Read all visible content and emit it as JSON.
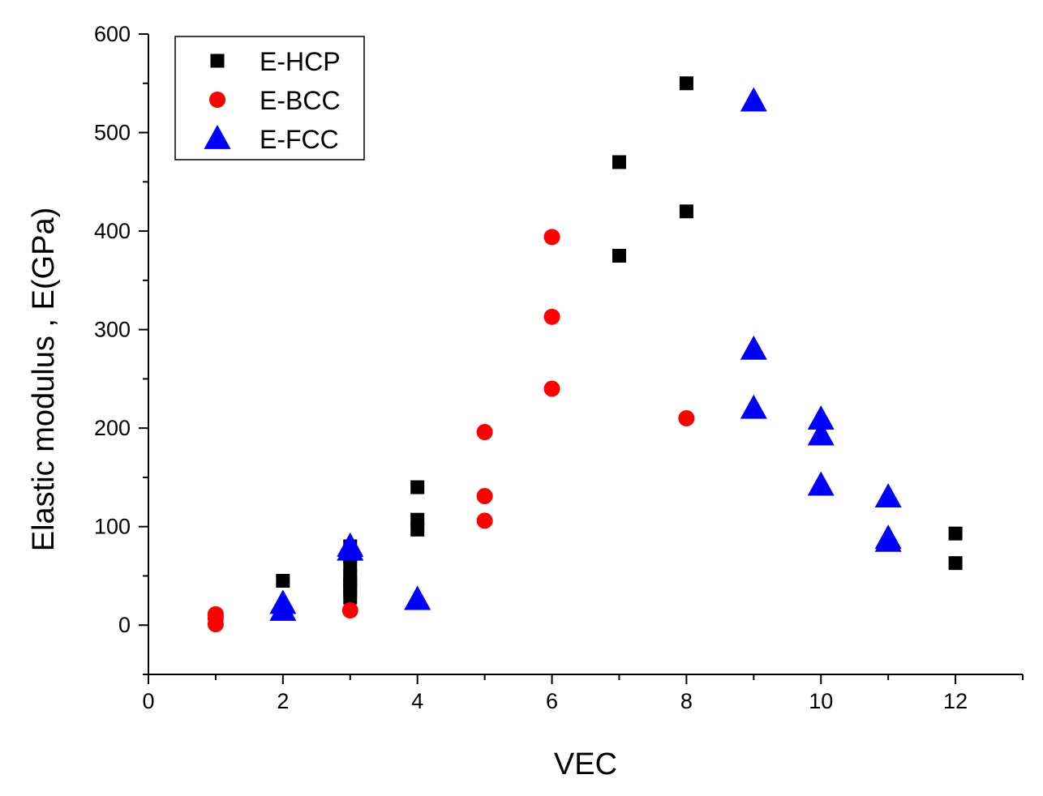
{
  "chart_data": {
    "type": "scatter",
    "title": "",
    "xlabel": "VEC",
    "ylabel": "Elastic modulus , E(GPa)",
    "xlim": [
      0,
      13
    ],
    "ylim": [
      -50,
      600
    ],
    "xticks": [
      0,
      2,
      4,
      6,
      8,
      10,
      12
    ],
    "yticks": [
      0,
      100,
      200,
      300,
      400,
      500,
      600
    ],
    "grid": false,
    "legend_position": "top-left",
    "series": [
      {
        "name": "E-HCP",
        "marker": "square",
        "color": "#000000",
        "points": [
          [
            2,
            45
          ],
          [
            3,
            80
          ],
          [
            3,
            70
          ],
          [
            3,
            60
          ],
          [
            3,
            50
          ],
          [
            3,
            45
          ],
          [
            3,
            40
          ],
          [
            3,
            35
          ],
          [
            3,
            28
          ],
          [
            4,
            140
          ],
          [
            4,
            107
          ],
          [
            4,
            97
          ],
          [
            7,
            470
          ],
          [
            7,
            375
          ],
          [
            8,
            550
          ],
          [
            8,
            420
          ],
          [
            12,
            93
          ],
          [
            12,
            63
          ]
        ]
      },
      {
        "name": "E-BCC",
        "marker": "circle",
        "color": "#ff0000",
        "points": [
          [
            1,
            11
          ],
          [
            1,
            7
          ],
          [
            1,
            1
          ],
          [
            2,
            14
          ],
          [
            3,
            15
          ],
          [
            5,
            196
          ],
          [
            5,
            131
          ],
          [
            5,
            106
          ],
          [
            6,
            394
          ],
          [
            6,
            313
          ],
          [
            6,
            240
          ],
          [
            8,
            210
          ]
        ]
      },
      {
        "name": "E-FCC",
        "marker": "triangle",
        "color": "#0000ff",
        "points": [
          [
            2,
            22
          ],
          [
            2,
            15
          ],
          [
            3,
            80
          ],
          [
            3,
            76
          ],
          [
            4,
            26
          ],
          [
            9,
            532
          ],
          [
            9,
            280
          ],
          [
            9,
            220
          ],
          [
            10,
            209
          ],
          [
            10,
            193
          ],
          [
            10,
            142
          ],
          [
            11,
            130
          ],
          [
            11,
            88
          ],
          [
            11,
            85
          ]
        ]
      }
    ]
  }
}
